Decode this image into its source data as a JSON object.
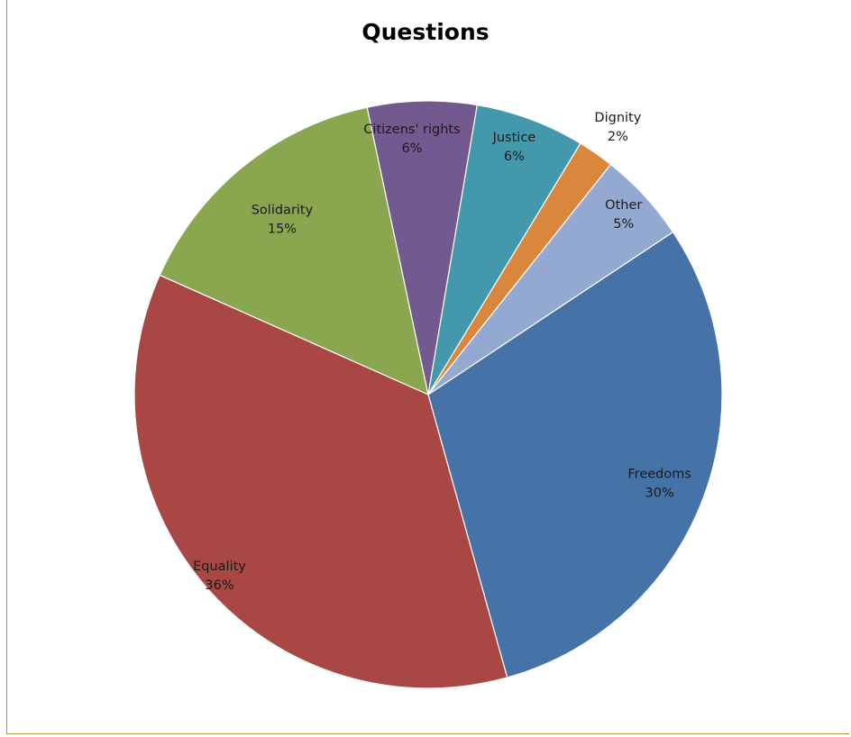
{
  "chart_data": {
    "type": "pie",
    "title": "Questions",
    "slices": [
      {
        "name": "Solidarity",
        "label": "15%",
        "value": 15,
        "color": "#8aa64f"
      },
      {
        "name": "Citizens' rights",
        "label": "6%",
        "value": 6,
        "color": "#72598f"
      },
      {
        "name": "Justice",
        "label": "6%",
        "value": 6,
        "color": "#4398ac"
      },
      {
        "name": "Dignity",
        "label": "2%",
        "value": 2,
        "color": "#d9873c"
      },
      {
        "name": "Other",
        "label": "5%",
        "value": 5,
        "color": "#93a9d1"
      },
      {
        "name": "Freedoms",
        "label": "30%",
        "value": 30,
        "color": "#4572a7"
      },
      {
        "name": "Equality",
        "label": "36%",
        "value": 36,
        "color": "#a84744"
      }
    ],
    "legend": "none"
  }
}
